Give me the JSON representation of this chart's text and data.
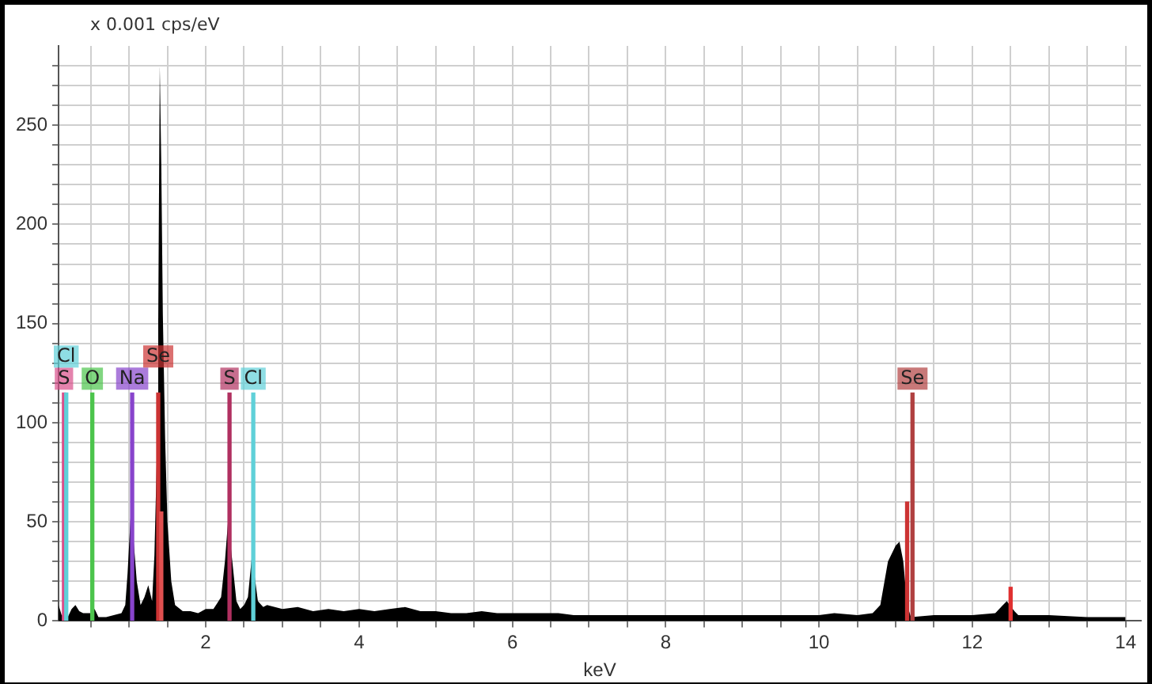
{
  "chart_data": {
    "type": "area",
    "ylabel": "x 0.001 cps/eV",
    "xlabel": "keV",
    "xlim": [
      0.08,
      14.2
    ],
    "xticks": [
      {
        "value": 0.5,
        "label": null
      },
      {
        "value": 1,
        "label": null
      },
      {
        "value": 1.5,
        "label": null
      },
      2,
      {
        "value": 2.5,
        "label": null
      },
      {
        "value": 3,
        "label": null
      },
      {
        "value": 3.5,
        "label": null
      },
      4,
      {
        "value": 4.5,
        "label": null
      },
      {
        "value": 5,
        "label": null
      },
      {
        "value": 5.5,
        "label": null
      },
      6,
      {
        "value": 6.5,
        "label": null
      },
      {
        "value": 7,
        "label": null
      },
      {
        "value": 7.5,
        "label": null
      },
      8,
      {
        "value": 8.5,
        "label": null
      },
      {
        "value": 9,
        "label": null
      },
      {
        "value": 9.5,
        "label": null
      },
      10,
      {
        "value": 10.5,
        "label": null
      },
      {
        "value": 11,
        "label": null
      },
      {
        "value": 11.5,
        "label": null
      },
      12,
      {
        "value": 12.5,
        "label": null
      },
      {
        "value": 13,
        "label": null
      },
      {
        "value": 13.5,
        "label": null
      },
      14
    ],
    "ylim": [
      0,
      290
    ],
    "yticks": [
      0,
      {
        "value": 10,
        "label": null
      },
      {
        "value": 20,
        "label": null
      },
      {
        "value": 30,
        "label": null
      },
      {
        "value": 40,
        "label": null
      },
      50,
      {
        "value": 60,
        "label": null
      },
      {
        "value": 70,
        "label": null
      },
      {
        "value": 80,
        "label": null
      },
      {
        "value": 90,
        "label": null
      },
      100,
      {
        "value": 110,
        "label": null
      },
      {
        "value": 120,
        "label": null
      },
      {
        "value": 130,
        "label": null
      },
      {
        "value": 140,
        "label": null
      },
      150,
      {
        "value": 160,
        "label": null
      },
      {
        "value": 170,
        "label": null
      },
      {
        "value": 180,
        "label": null
      },
      {
        "value": 190,
        "label": null
      },
      200,
      {
        "value": 210,
        "label": null
      },
      {
        "value": 220,
        "label": null
      },
      {
        "value": 230,
        "label": null
      },
      {
        "value": 240,
        "label": null
      },
      250,
      {
        "value": 260,
        "label": null
      },
      {
        "value": 270,
        "label": null
      },
      {
        "value": 280,
        "label": null
      }
    ],
    "grid": true,
    "legend": false,
    "series": [
      {
        "color": "#000000",
        "x": [
          0.08,
          0.12,
          0.2,
          0.25,
          0.3,
          0.35,
          0.4,
          0.5,
          0.55,
          0.6,
          0.7,
          0.8,
          0.9,
          0.95,
          0.98,
          1.02,
          1.06,
          1.1,
          1.15,
          1.2,
          1.25,
          1.3,
          1.33,
          1.36,
          1.38,
          1.4,
          1.42,
          1.44,
          1.47,
          1.5,
          1.55,
          1.6,
          1.7,
          1.8,
          1.9,
          2.0,
          2.1,
          2.2,
          2.25,
          2.29,
          2.32,
          2.36,
          2.4,
          2.45,
          2.5,
          2.55,
          2.6,
          2.63,
          2.68,
          2.75,
          2.8,
          3.0,
          3.2,
          3.4,
          3.6,
          3.8,
          4.0,
          4.2,
          4.4,
          4.6,
          4.8,
          5.0,
          5.2,
          5.4,
          5.6,
          5.8,
          6.0,
          6.2,
          6.4,
          6.6,
          6.8,
          7.0,
          7.5,
          8.0,
          8.5,
          9.0,
          9.5,
          10.0,
          10.2,
          10.5,
          10.7,
          10.8,
          10.9,
          11.0,
          11.05,
          11.1,
          11.15,
          11.2,
          11.5,
          12.0,
          12.3,
          12.4,
          12.45,
          12.55,
          12.6,
          13.0,
          13.5,
          14.0
        ],
        "values": [
          8,
          3,
          2,
          6,
          8,
          5,
          4,
          4,
          6,
          2,
          2,
          3,
          4,
          8,
          24,
          53,
          40,
          20,
          8,
          12,
          18,
          10,
          33,
          80,
          150,
          280,
          230,
          155,
          92,
          50,
          20,
          8,
          5,
          5,
          4,
          6,
          6,
          12,
          30,
          50,
          40,
          25,
          10,
          6,
          8,
          12,
          32,
          25,
          10,
          7,
          8,
          6,
          7,
          5,
          6,
          5,
          6,
          5,
          6,
          7,
          5,
          5,
          4,
          4,
          5,
          4,
          4,
          4,
          4,
          4,
          3,
          3,
          3,
          3,
          3,
          3,
          3,
          3,
          4,
          3,
          4,
          8,
          30,
          38,
          40,
          30,
          8,
          2,
          3,
          3,
          4,
          8,
          10,
          5,
          3,
          3,
          2,
          2
        ]
      },
      {
        "type": "bar",
        "x": [
          0.15,
          0.18,
          0.52,
          1.04,
          1.38,
          1.42,
          2.31,
          2.62,
          11.15,
          11.22,
          12.5
        ],
        "values": [
          115,
          115,
          115,
          115,
          115,
          55,
          115,
          115,
          60,
          115,
          17
        ],
        "colors": [
          "#d94f8a",
          "#5fd0d8",
          "#4cc44c",
          "#8844cc",
          "#cc3333",
          "#e05050",
          "#b03060",
          "#5fd0d8",
          "#cc3333",
          "#b04040",
          "#e03030"
        ],
        "value_labels": [
          "S",
          "Cl",
          "O",
          "Na",
          "Se",
          null,
          "S",
          "Cl",
          null,
          "Se",
          null
        ]
      }
    ]
  }
}
